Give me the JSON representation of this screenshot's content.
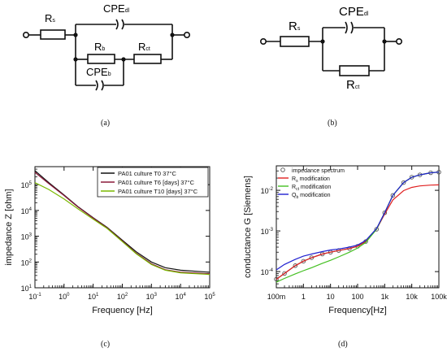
{
  "panels": {
    "a": {
      "caption": "(a)",
      "labels": {
        "rs": "R",
        "rs_sub": "s",
        "cpe_dl": "CPE",
        "cpe_dl_sub": "dl",
        "rb": "R",
        "rb_sub": "b",
        "rct": "R",
        "rct_sub": "ct",
        "cpe_b": "CPE",
        "cpe_b_sub": "b"
      }
    },
    "b": {
      "caption": "(b)",
      "labels": {
        "rs": "R",
        "rs_sub": "s",
        "cpe_dl": "CPE",
        "cpe_dl_sub": "dl",
        "rct": "R",
        "rct_sub": "ct"
      }
    },
    "c": {
      "caption": "(c)"
    },
    "d": {
      "caption": "(d)"
    }
  },
  "chart_data": [
    {
      "type": "line",
      "panel": "c",
      "x_scale": "log",
      "y_scale": "log",
      "xlabel": "Frequency [Hz]",
      "ylabel": "impedance Z [ohm]",
      "xlim": [
        0.1,
        100000
      ],
      "ylim": [
        10,
        500000
      ],
      "x_ticks": [
        0.1,
        1,
        10,
        100,
        1000,
        10000,
        100000
      ],
      "x_tick_labels": [
        "10",
        "10",
        "10",
        "10",
        "10",
        "10",
        "10"
      ],
      "x_tick_exponents": [
        "-1",
        "0",
        "1",
        "2",
        "3",
        "4",
        "5"
      ],
      "y_ticks": [
        10,
        100,
        1000,
        10000,
        100000
      ],
      "y_tick_labels": [
        "10",
        "10",
        "10",
        "10",
        "10"
      ],
      "y_tick_exponents": [
        "1",
        "2",
        "3",
        "4",
        "5"
      ],
      "legend_position": "top-right",
      "series": [
        {
          "name": "PA01 culture T0 37°C",
          "color": "#111111",
          "x": [
            0.1,
            0.3,
            1,
            3,
            10,
            30,
            100,
            300,
            1000,
            3000,
            10000,
            100000
          ],
          "y": [
            350000,
            120000,
            40000,
            14000,
            5200,
            2200,
            700,
            250,
            100,
            60,
            48,
            40
          ]
        },
        {
          "name": "PA01 culture T6 [days] 37°C",
          "color": "#8b1a3a",
          "x": [
            0.1,
            0.3,
            1,
            3,
            10,
            30,
            100,
            300,
            1000,
            3000,
            10000,
            100000
          ],
          "y": [
            300000,
            110000,
            38000,
            13500,
            5000,
            2100,
            650,
            220,
            85,
            50,
            40,
            35
          ]
        },
        {
          "name": "PA01 culture T10 [days] 37°C",
          "color": "#7ab800",
          "x": [
            0.1,
            0.3,
            1,
            3,
            10,
            30,
            100,
            300,
            1000,
            3000,
            10000,
            100000
          ],
          "y": [
            120000,
            65000,
            28000,
            11500,
            4600,
            2000,
            620,
            210,
            80,
            48,
            38,
            33
          ]
        }
      ]
    },
    {
      "type": "line",
      "panel": "d",
      "x_scale": "log",
      "y_scale": "log",
      "xlabel": "Frequency[Hz]",
      "ylabel": "conductance G [Siemens]",
      "xlim": [
        0.1,
        100000
      ],
      "ylim": [
        4e-05,
        0.04
      ],
      "x_ticks": [
        0.1,
        1,
        10,
        100,
        1000,
        10000,
        100000
      ],
      "x_tick_labels": [
        "100m",
        "1",
        "10",
        "100",
        "1k",
        "10k",
        "100k"
      ],
      "y_ticks": [
        0.0001,
        0.001,
        0.01
      ],
      "y_tick_labels": [
        "10",
        "10",
        "10"
      ],
      "y_tick_exponents": [
        "-4",
        "-3",
        "-2"
      ],
      "legend_position": "top-left",
      "series": [
        {
          "name": "impedance spectrum",
          "color": "#555555",
          "marker": "circle",
          "x": [
            0.1,
            0.2,
            0.5,
            1,
            2,
            5,
            10,
            20,
            50,
            100,
            200,
            500,
            1000,
            2000,
            5000,
            10000,
            20000,
            50000,
            100000
          ],
          "y": [
            6.5e-05,
            9e-05,
            0.00014,
            0.00018,
            0.00022,
            0.00027,
            0.0003,
            0.00033,
            0.00037,
            0.00042,
            0.00055,
            0.0011,
            0.0028,
            0.0075,
            0.0155,
            0.021,
            0.024,
            0.027,
            0.028
          ]
        },
        {
          "name": "R",
          "name_sub": "s",
          "name_rest": " modification",
          "color": "#e02020",
          "x": [
            0.1,
            0.2,
            0.5,
            1,
            2,
            5,
            10,
            20,
            50,
            100,
            200,
            500,
            1000,
            2000,
            5000,
            10000,
            20000,
            50000,
            100000
          ],
          "y": [
            6.5e-05,
            9e-05,
            0.00014,
            0.00018,
            0.00022,
            0.00027,
            0.0003,
            0.00033,
            0.00037,
            0.00042,
            0.00055,
            0.0011,
            0.0026,
            0.0058,
            0.0098,
            0.0118,
            0.0128,
            0.0134,
            0.0136
          ]
        },
        {
          "name": "R",
          "name_sub": "ct",
          "name_rest": " modification",
          "color": "#44c022",
          "x": [
            0.1,
            0.2,
            0.5,
            1,
            2,
            5,
            10,
            20,
            50,
            100,
            200,
            500,
            1000,
            2000,
            5000,
            10000,
            20000,
            50000,
            100000
          ],
          "y": [
            5.5e-05,
            6.8e-05,
            8.8e-05,
            0.000105,
            0.000125,
            0.00016,
            0.00019,
            0.00023,
            0.0003,
            0.00038,
            0.00052,
            0.0011,
            0.0028,
            0.0075,
            0.0155,
            0.021,
            0.024,
            0.027,
            0.028
          ]
        },
        {
          "name": "Q",
          "name_sub": "b",
          "name_rest": " modification",
          "color": "#2020d0",
          "x": [
            0.1,
            0.2,
            0.5,
            1,
            2,
            5,
            10,
            20,
            50,
            100,
            200,
            500,
            1000,
            2000,
            5000,
            10000,
            20000,
            50000,
            100000
          ],
          "y": [
            0.00011,
            0.00015,
            0.0002,
            0.00024,
            0.00027,
            0.00031,
            0.00034,
            0.00036,
            0.0004,
            0.00045,
            0.00058,
            0.00115,
            0.0028,
            0.0075,
            0.0155,
            0.021,
            0.024,
            0.027,
            0.028
          ]
        }
      ]
    }
  ]
}
